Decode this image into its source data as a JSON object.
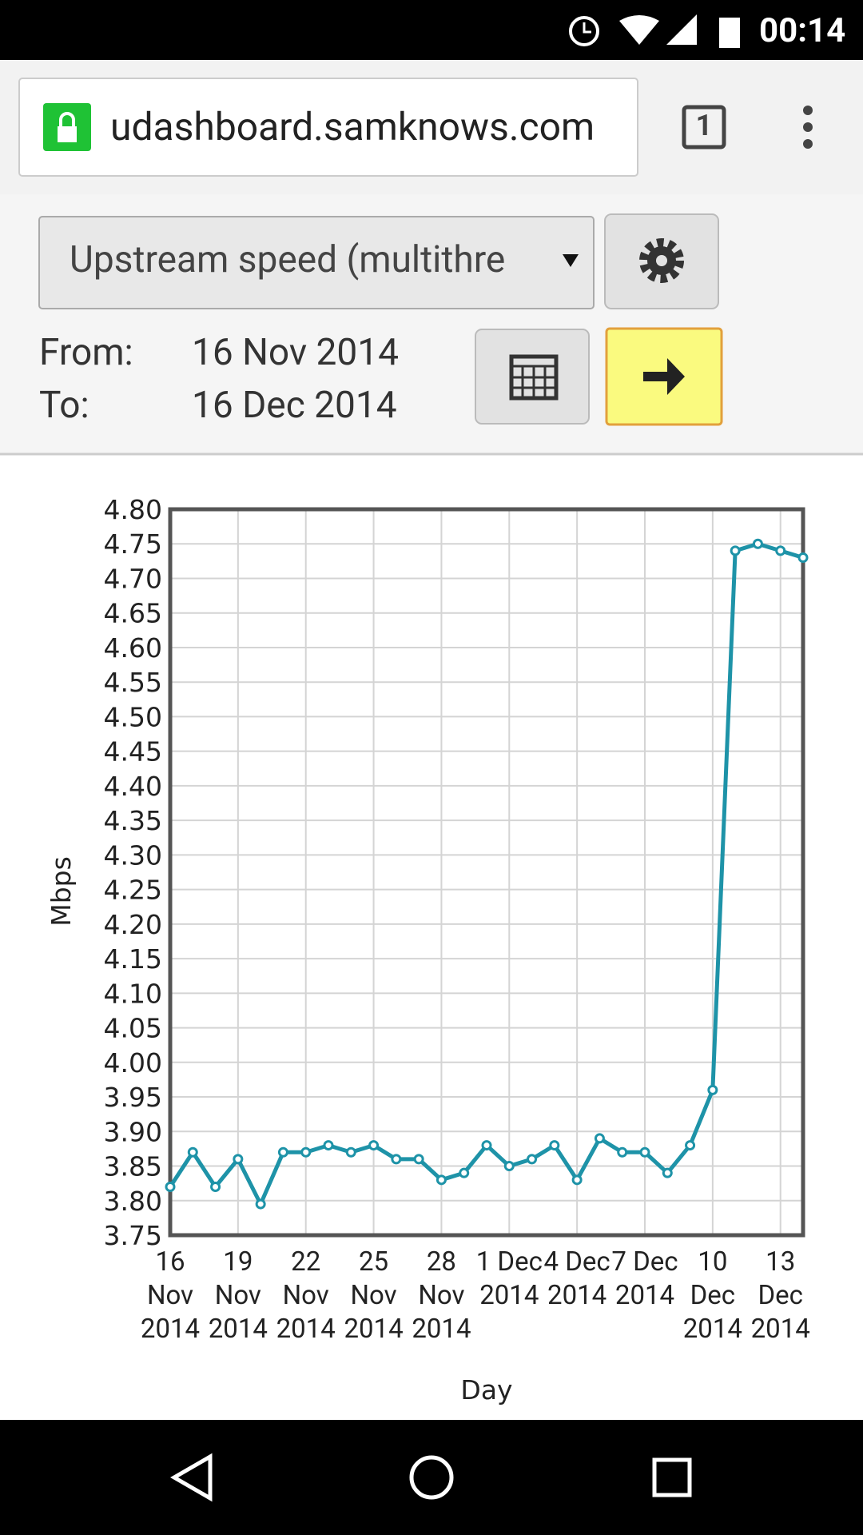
{
  "status_bar": {
    "time": "00:14"
  },
  "browser": {
    "url": "udashboard.samknows.com",
    "tab_count": "1"
  },
  "controls": {
    "metric": "Upstream speed (multithre",
    "from_label": "From:",
    "from_date": "16 Nov 2014",
    "to_label": "To:",
    "to_date": "16 Dec 2014"
  },
  "chart_data": {
    "type": "line",
    "y_label": "Mbps",
    "x_label": "Day",
    "x": [
      "2014-11-16",
      "2014-11-17",
      "2014-11-18",
      "2014-11-19",
      "2014-11-20",
      "2014-11-21",
      "2014-11-22",
      "2014-11-23",
      "2014-11-24",
      "2014-11-25",
      "2014-11-26",
      "2014-11-27",
      "2014-11-28",
      "2014-11-29",
      "2014-11-30",
      "2014-12-01",
      "2014-12-02",
      "2014-12-03",
      "2014-12-04",
      "2014-12-05",
      "2014-12-06",
      "2014-12-07",
      "2014-12-08",
      "2014-12-09",
      "2014-12-10",
      "2014-12-11",
      "2014-12-12",
      "2014-12-13",
      "2014-12-14"
    ],
    "series": [
      {
        "color": "#1e93a8",
        "values": [
          3.82,
          3.87,
          3.82,
          3.86,
          3.795,
          3.87,
          3.87,
          3.88,
          3.87,
          3.88,
          3.86,
          3.86,
          3.83,
          3.84,
          3.88,
          3.85,
          3.86,
          3.88,
          3.83,
          3.89,
          3.87,
          3.87,
          3.84,
          3.88,
          3.96,
          4.74,
          4.75,
          4.74,
          4.73
        ]
      }
    ],
    "xlim": [
      "2014-11-16",
      "2014-12-14"
    ],
    "xticks": [
      {
        "value": "2014-11-16",
        "label": "16 Nov 2014"
      },
      {
        "value": "2014-11-19",
        "label": "19 Nov 2014"
      },
      {
        "value": "2014-11-22",
        "label": "22 Nov 2014"
      },
      {
        "value": "2014-11-25",
        "label": "25 Nov 2014"
      },
      {
        "value": "2014-11-28",
        "label": "28 Nov 2014"
      },
      {
        "value": "2014-12-01",
        "label": "1 Dec 2014"
      },
      {
        "value": "2014-12-04",
        "label": "4 Dec 2014"
      },
      {
        "value": "2014-12-07",
        "label": "7 Dec 2014"
      },
      {
        "value": "2014-12-10",
        "label": "10 Dec 2014"
      },
      {
        "value": "2014-12-13",
        "label": "13 Dec 2014"
      }
    ],
    "ylim": [
      3.75,
      4.8
    ],
    "yticks": [
      3.75,
      {
        "value": 3.8,
        "label": "3.80"
      },
      3.85,
      {
        "value": 3.9,
        "label": "3.90"
      },
      3.95,
      {
        "value": 4.0,
        "label": "4.00"
      },
      4.05,
      {
        "value": 4.1,
        "label": "4.10"
      },
      4.15,
      {
        "value": 4.2,
        "label": "4.20"
      },
      4.25,
      {
        "value": 4.3,
        "label": "4.30"
      },
      4.35,
      {
        "value": 4.4,
        "label": "4.40"
      },
      4.45,
      {
        "value": 4.5,
        "label": "4.50"
      },
      4.55,
      {
        "value": 4.6,
        "label": "4.60"
      },
      4.65,
      {
        "value": 4.7,
        "label": "4.70"
      },
      4.75,
      {
        "value": 4.8,
        "label": "4.80"
      }
    ],
    "grid": true
  }
}
